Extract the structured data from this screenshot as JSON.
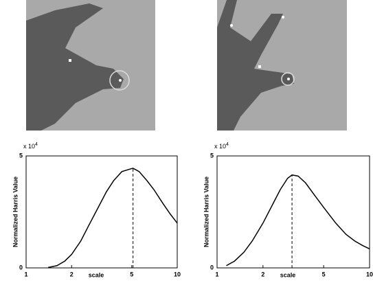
{
  "chart_data": [
    {
      "type": "line",
      "xscale": "log",
      "xlabel": "scale",
      "ylabel": "Normalized Harris Value",
      "y_multiplier": {
        "base": "x 10",
        "exponent": "4"
      },
      "x": [
        1.4,
        1.6,
        1.8,
        2,
        2.3,
        2.6,
        3,
        3.4,
        3.8,
        4.3,
        4.8,
        5.1,
        5.6,
        6.3,
        7,
        8,
        9,
        10
      ],
      "series": [
        {
          "color": "#000000",
          "values": [
            0.02,
            0.1,
            0.3,
            0.6,
            1.2,
            1.9,
            2.7,
            3.4,
            3.9,
            4.3,
            4.4,
            4.45,
            4.3,
            3.9,
            3.5,
            2.9,
            2.4,
            2.0
          ]
        }
      ],
      "peak": {
        "x": 5.1,
        "y": 4.45
      },
      "xlim": [
        1,
        10
      ],
      "xticks": [
        1,
        2,
        5,
        10
      ],
      "ylim": [
        0,
        5
      ],
      "yticks": [
        0,
        5
      ]
    },
    {
      "type": "line",
      "xscale": "log",
      "xlabel": "scale",
      "ylabel": "Normalized Harris Value",
      "y_multiplier": {
        "base": "x 10",
        "exponent": "4"
      },
      "x": [
        1.15,
        1.3,
        1.5,
        1.7,
        2,
        2.3,
        2.6,
        2.9,
        3.1,
        3.4,
        3.8,
        4.3,
        5,
        6,
        7,
        8,
        9,
        10
      ],
      "series": [
        {
          "color": "#000000",
          "values": [
            0.1,
            0.3,
            0.7,
            1.2,
            2.0,
            2.8,
            3.5,
            4.0,
            4.15,
            4.1,
            3.8,
            3.3,
            2.7,
            2.0,
            1.5,
            1.2,
            1.0,
            0.85
          ]
        }
      ],
      "peak": {
        "x": 3.1,
        "y": 4.15
      },
      "xlim": [
        1,
        10
      ],
      "xticks": [
        1,
        2,
        5,
        10
      ],
      "ylim": [
        0,
        5
      ],
      "yticks": [
        0,
        5
      ]
    }
  ]
}
